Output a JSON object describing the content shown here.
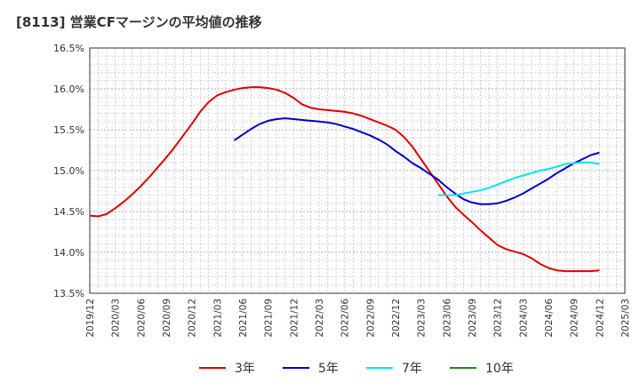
{
  "title": "[8113]  営業CFマージンの平均値の推移",
  "chart_data": {
    "type": "line",
    "ylim": [
      13.5,
      16.5
    ],
    "y_ticks": [
      {
        "value": 16.5,
        "label": "16.5%"
      },
      {
        "value": 16.0,
        "label": "16.0%"
      },
      {
        "value": 15.5,
        "label": "15.5%"
      },
      {
        "value": 15.0,
        "label": "15.0%"
      },
      {
        "value": 14.5,
        "label": "14.5%"
      },
      {
        "value": 14.0,
        "label": "14.0%"
      },
      {
        "value": 13.5,
        "label": "13.5%"
      }
    ],
    "x_ticks": [
      "2019/12",
      "2020/03",
      "2020/06",
      "2020/09",
      "2020/12",
      "2021/03",
      "2021/06",
      "2021/09",
      "2021/12",
      "2022/03",
      "2022/06",
      "2022/09",
      "2022/12",
      "2023/03",
      "2023/06",
      "2023/09",
      "2023/12",
      "2024/03",
      "2024/06",
      "2024/09",
      "2024/12",
      "2025/03"
    ],
    "grid": true,
    "legend_position": "bottom",
    "series": [
      {
        "name": "3年",
        "color": "#e00000",
        "points": [
          [
            "2019/12",
            14.45
          ],
          [
            "2020/01",
            14.44
          ],
          [
            "2020/02",
            14.47
          ],
          [
            "2020/03",
            14.54
          ],
          [
            "2020/04",
            14.62
          ],
          [
            "2020/05",
            14.71
          ],
          [
            "2020/06",
            14.81
          ],
          [
            "2020/07",
            14.92
          ],
          [
            "2020/08",
            15.04
          ],
          [
            "2020/09",
            15.16
          ],
          [
            "2020/10",
            15.29
          ],
          [
            "2020/11",
            15.43
          ],
          [
            "2020/12",
            15.57
          ],
          [
            "2021/01",
            15.72
          ],
          [
            "2021/02",
            15.84
          ],
          [
            "2021/03",
            15.92
          ],
          [
            "2021/04",
            15.96
          ],
          [
            "2021/05",
            15.99
          ],
          [
            "2021/06",
            16.01
          ],
          [
            "2021/07",
            16.02
          ],
          [
            "2021/08",
            16.02
          ],
          [
            "2021/09",
            16.01
          ],
          [
            "2021/10",
            15.99
          ],
          [
            "2021/11",
            15.95
          ],
          [
            "2021/12",
            15.89
          ],
          [
            "2022/01",
            15.81
          ],
          [
            "2022/02",
            15.77
          ],
          [
            "2022/03",
            15.75
          ],
          [
            "2022/04",
            15.74
          ],
          [
            "2022/05",
            15.73
          ],
          [
            "2022/06",
            15.72
          ],
          [
            "2022/07",
            15.7
          ],
          [
            "2022/08",
            15.67
          ],
          [
            "2022/09",
            15.63
          ],
          [
            "2022/10",
            15.59
          ],
          [
            "2022/11",
            15.55
          ],
          [
            "2022/12",
            15.5
          ],
          [
            "2023/01",
            15.41
          ],
          [
            "2023/02",
            15.29
          ],
          [
            "2023/03",
            15.14
          ],
          [
            "2023/04",
            14.99
          ],
          [
            "2023/05",
            14.84
          ],
          [
            "2023/06",
            14.69
          ],
          [
            "2023/07",
            14.56
          ],
          [
            "2023/08",
            14.46
          ],
          [
            "2023/09",
            14.37
          ],
          [
            "2023/10",
            14.27
          ],
          [
            "2023/11",
            14.18
          ],
          [
            "2023/12",
            14.09
          ],
          [
            "2024/01",
            14.04
          ],
          [
            "2024/02",
            14.01
          ],
          [
            "2024/03",
            13.98
          ],
          [
            "2024/04",
            13.93
          ],
          [
            "2024/05",
            13.86
          ],
          [
            "2024/06",
            13.81
          ],
          [
            "2024/07",
            13.78
          ],
          [
            "2024/08",
            13.77
          ],
          [
            "2024/09",
            13.77
          ],
          [
            "2024/10",
            13.77
          ],
          [
            "2024/11",
            13.77
          ],
          [
            "2024/12",
            13.78
          ]
        ]
      },
      {
        "name": "5年",
        "color": "#0000cc",
        "points": [
          [
            "2021/05",
            15.37
          ],
          [
            "2021/06",
            15.44
          ],
          [
            "2021/07",
            15.51
          ],
          [
            "2021/08",
            15.57
          ],
          [
            "2021/09",
            15.61
          ],
          [
            "2021/10",
            15.63
          ],
          [
            "2021/11",
            15.64
          ],
          [
            "2021/12",
            15.63
          ],
          [
            "2022/01",
            15.62
          ],
          [
            "2022/02",
            15.61
          ],
          [
            "2022/03",
            15.6
          ],
          [
            "2022/04",
            15.59
          ],
          [
            "2022/05",
            15.57
          ],
          [
            "2022/06",
            15.54
          ],
          [
            "2022/07",
            15.51
          ],
          [
            "2022/08",
            15.47
          ],
          [
            "2022/09",
            15.43
          ],
          [
            "2022/10",
            15.38
          ],
          [
            "2022/11",
            15.32
          ],
          [
            "2022/12",
            15.24
          ],
          [
            "2023/01",
            15.17
          ],
          [
            "2023/02",
            15.09
          ],
          [
            "2023/03",
            15.03
          ],
          [
            "2023/04",
            14.96
          ],
          [
            "2023/05",
            14.89
          ],
          [
            "2023/06",
            14.8
          ],
          [
            "2023/07",
            14.72
          ],
          [
            "2023/08",
            14.65
          ],
          [
            "2023/09",
            14.61
          ],
          [
            "2023/10",
            14.59
          ],
          [
            "2023/11",
            14.59
          ],
          [
            "2023/12",
            14.6
          ],
          [
            "2024/01",
            14.63
          ],
          [
            "2024/02",
            14.67
          ],
          [
            "2024/03",
            14.72
          ],
          [
            "2024/04",
            14.78
          ],
          [
            "2024/05",
            14.84
          ],
          [
            "2024/06",
            14.9
          ],
          [
            "2024/07",
            14.97
          ],
          [
            "2024/08",
            15.03
          ],
          [
            "2024/09",
            15.09
          ],
          [
            "2024/10",
            15.14
          ],
          [
            "2024/11",
            15.19
          ],
          [
            "2024/12",
            15.22
          ]
        ]
      },
      {
        "name": "7年",
        "color": "#00e5ee",
        "points": [
          [
            "2023/05",
            14.7
          ],
          [
            "2023/06",
            14.7
          ],
          [
            "2023/07",
            14.7
          ],
          [
            "2023/08",
            14.72
          ],
          [
            "2023/09",
            14.74
          ],
          [
            "2023/10",
            14.76
          ],
          [
            "2023/11",
            14.79
          ],
          [
            "2023/12",
            14.83
          ],
          [
            "2024/01",
            14.87
          ],
          [
            "2024/02",
            14.91
          ],
          [
            "2024/03",
            14.94
          ],
          [
            "2024/04",
            14.97
          ],
          [
            "2024/05",
            15.0
          ],
          [
            "2024/06",
            15.02
          ],
          [
            "2024/07",
            15.05
          ],
          [
            "2024/08",
            15.08
          ],
          [
            "2024/09",
            15.09
          ],
          [
            "2024/10",
            15.1
          ],
          [
            "2024/11",
            15.1
          ],
          [
            "2024/12",
            15.08
          ]
        ]
      },
      {
        "name": "10年",
        "color": "#228b22",
        "points": []
      }
    ]
  }
}
